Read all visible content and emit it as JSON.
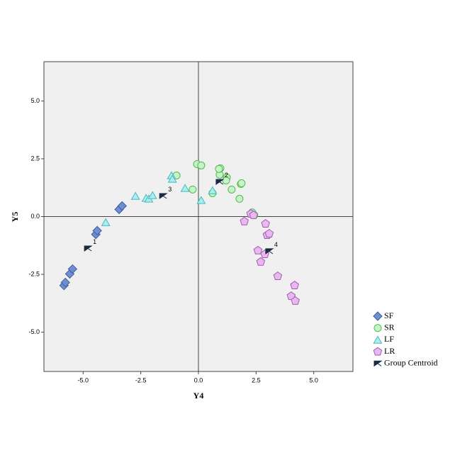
{
  "chart_data": {
    "type": "scatter",
    "x_label": "Y4",
    "y_label": "Y5",
    "xlim": [
      -6.7,
      6.7
    ],
    "ylim": [
      -6.7,
      6.7
    ],
    "xticks": [
      {
        "value": -5,
        "label": "-5.0"
      },
      {
        "value": -2.5,
        "label": "-2.5"
      },
      {
        "value": 0,
        "label": "0.0"
      },
      {
        "value": 2.5,
        "label": "2.5"
      },
      {
        "value": 5,
        "label": "5.0"
      }
    ],
    "yticks": [
      {
        "value": -5,
        "label": "-5.0"
      },
      {
        "value": -2.5,
        "label": "-2.5"
      },
      {
        "value": 0,
        "label": "0.0"
      },
      {
        "value": 2.5,
        "label": "2.5"
      },
      {
        "value": 5,
        "label": "5.0"
      }
    ],
    "reference_x": 0,
    "reference_y": 0,
    "legend": "right",
    "series": [
      {
        "name": "SF",
        "marker": "diamond",
        "color": "#6f8fd0",
        "stroke": "#3c5da0",
        "x": [
          -5.83,
          -5.77,
          -5.58,
          -5.46,
          -4.45,
          -4.39,
          -3.44,
          -3.31
        ],
        "values": [
          -2.98,
          -2.85,
          -2.48,
          -2.27,
          -0.77,
          -0.61,
          0.31,
          0.46
        ]
      },
      {
        "name": "SR",
        "marker": "circle",
        "color": "#c9f2c9",
        "stroke": "#4dbd4d",
        "x": [
          -0.06,
          0.12,
          -0.95,
          -0.25,
          0.92,
          0.95,
          0.89,
          1.23,
          1.2,
          1.44,
          1.84,
          1.87,
          1.78,
          0.61,
          2.33,
          2.42
        ],
        "values": [
          2.27,
          2.21,
          1.78,
          1.17,
          1.81,
          2.09,
          2.06,
          1.69,
          1.56,
          1.17,
          1.41,
          1.44,
          0.77,
          1.01,
          0.18,
          0.06
        ]
      },
      {
        "name": "LF",
        "marker": "triangle",
        "color": "#aaeeee",
        "stroke": "#4ab8c0",
        "x": [
          -4.02,
          -2.73,
          -2.27,
          -2.15,
          -1.99,
          -1.17,
          -1.13,
          -0.58,
          0.61,
          0.12
        ],
        "values": [
          -0.25,
          0.89,
          0.8,
          0.77,
          0.92,
          1.78,
          1.63,
          1.23,
          1.13,
          0.71
        ]
      },
      {
        "name": "LR",
        "marker": "pentagon",
        "color": "#e7b9f0",
        "stroke": "#a35cb0",
        "x": [
          1.99,
          2.27,
          2.39,
          2.91,
          2.98,
          3.07,
          2.58,
          2.88,
          2.7,
          3.44,
          4.17,
          4.02,
          4.2
        ],
        "values": [
          -0.21,
          0.12,
          0.06,
          -0.31,
          -0.8,
          -0.74,
          -1.47,
          -1.63,
          -1.96,
          -2.58,
          -2.98,
          -3.44,
          -3.65
        ]
      },
      {
        "name": "Group Centroid",
        "marker": "bowtie",
        "color": "#1a2a40",
        "stroke": "#1a2a40",
        "x": [
          -4.79,
          0.92,
          -1.53,
          3.07
        ],
        "values": [
          -1.38,
          1.5,
          0.89,
          -1.5
        ],
        "labels": [
          "1",
          "2",
          "3",
          "4"
        ]
      }
    ]
  }
}
